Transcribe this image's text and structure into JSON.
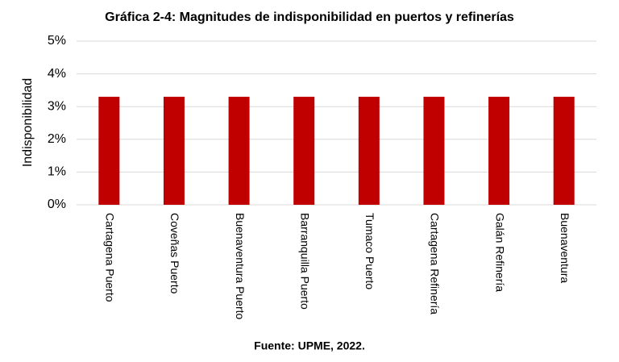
{
  "chart_data": {
    "type": "bar",
    "title": "Gráfica 2-4: Magnitudes de indisponibilidad en puertos y refinerías",
    "y_label": "Indisponibilidad",
    "source": "Fuente: UPME, 2022.",
    "categories": [
      "Cartagena Puerto",
      "Coveñas Puerto",
      "Buenaventura Puerto",
      "Barranquilla Puerto",
      "Tumaco Puerto",
      "Cartagena Refinería",
      "Galán Refinería",
      "Buenaventura"
    ],
    "values": [
      3.3,
      3.3,
      3.3,
      3.3,
      3.3,
      3.3,
      3.3,
      3.3
    ],
    "color": "#c00000",
    "ylim": [
      0,
      5
    ],
    "yticks": [
      {
        "value": 0,
        "label": "0%"
      },
      {
        "value": 1,
        "label": "1%"
      },
      {
        "value": 2,
        "label": "2%"
      },
      {
        "value": 3,
        "label": "3%"
      },
      {
        "value": 4,
        "label": "4%"
      },
      {
        "value": 5,
        "label": "5%"
      }
    ],
    "grid": true
  }
}
